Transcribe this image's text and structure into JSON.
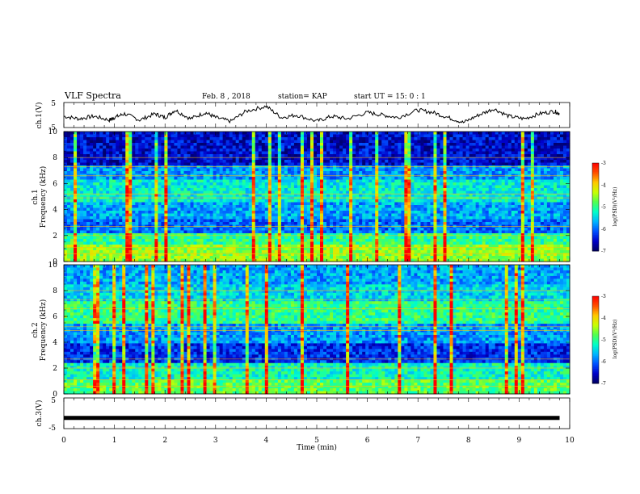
{
  "header": {
    "title": "VLF Spectra",
    "date": "Feb. 8 , 2018",
    "station": "station= KAP",
    "start_ut": "start UT =  15: 0  : 1"
  },
  "colors": {
    "waveform": "#000000",
    "ch3_bar": "#000000",
    "colormap": [
      "#000060",
      "#0000c8",
      "#0050ff",
      "#00b4ff",
      "#00ffc8",
      "#50ff50",
      "#c8ff00",
      "#ffc800",
      "#ff5000",
      "#ff0000",
      "#ffffff"
    ]
  },
  "chart_data": [
    {
      "type": "line",
      "panel": "ch1-waveform",
      "ylabel": "ch.1(V)",
      "xlim": [
        0,
        10
      ],
      "ylim": [
        -5,
        5
      ],
      "y_ticks": [
        "5",
        "-5"
      ],
      "x": [
        0,
        0.3,
        0.6,
        0.9,
        1.0,
        1.2,
        1.5,
        1.8,
        2.0,
        2.2,
        2.5,
        2.8,
        3.0,
        3.3,
        3.6,
        4.0,
        4.3,
        4.6,
        5.0,
        5.3,
        5.6,
        6.0,
        6.3,
        6.6,
        7.0,
        7.3,
        7.6,
        7.9,
        8.2,
        8.5,
        8.8,
        9.1,
        9.4,
        9.7,
        9.8
      ],
      "y": [
        -0.5,
        -1.5,
        -0.5,
        -2.0,
        -1.0,
        0.5,
        -2.0,
        0.5,
        -1.0,
        2.0,
        -1.5,
        1.0,
        -1.0,
        -2.5,
        1.5,
        3.5,
        -1.0,
        0.0,
        -2.5,
        -0.5,
        -1.5,
        1.0,
        0.0,
        -1.0,
        2.0,
        1.0,
        -1.0,
        -3.0,
        0.0,
        2.5,
        -0.5,
        -1.5,
        0.5,
        1.5,
        0.5
      ]
    },
    {
      "type": "heatmap",
      "panel": "ch1-spectrogram",
      "ylabel": "ch.1",
      "ylabel2": "Frequency (kHz)",
      "xlim": [
        0,
        10
      ],
      "ylim": [
        0,
        10
      ],
      "y_ticks": [
        "0",
        "2",
        "4",
        "6",
        "8",
        "10"
      ],
      "colorbar": {
        "label": "log(PSD)(V²/Hz)",
        "range": [
          -7,
          -3
        ],
        "ticks": [
          "-3",
          "-4",
          "-5",
          "-6",
          "-7"
        ]
      }
    },
    {
      "type": "heatmap",
      "panel": "ch2-spectrogram",
      "ylabel": "ch.2",
      "ylabel2": "Frequency (kHz)",
      "xlim": [
        0,
        10
      ],
      "ylim": [
        0,
        10
      ],
      "y_ticks": [
        "0",
        "2",
        "4",
        "6",
        "8",
        "10"
      ],
      "colorbar": {
        "label": "log(PSD)(V²/Hz)",
        "range": [
          -7,
          -3
        ],
        "ticks": [
          "-3",
          "-4",
          "-5",
          "-6",
          "-7"
        ]
      }
    },
    {
      "type": "line",
      "panel": "ch3-waveform",
      "ylabel": "ch.3(V)",
      "xlim": [
        0,
        10
      ],
      "ylim": [
        -5,
        5
      ],
      "y_ticks": [
        "5",
        "-5"
      ],
      "x": [
        0,
        9.8
      ],
      "y": [
        -1.5,
        -1.5
      ]
    }
  ],
  "x_axis": {
    "label": "Time (min)",
    "ticks": [
      "0",
      "1",
      "2",
      "3",
      "4",
      "5",
      "6",
      "7",
      "8",
      "9",
      "10"
    ]
  }
}
